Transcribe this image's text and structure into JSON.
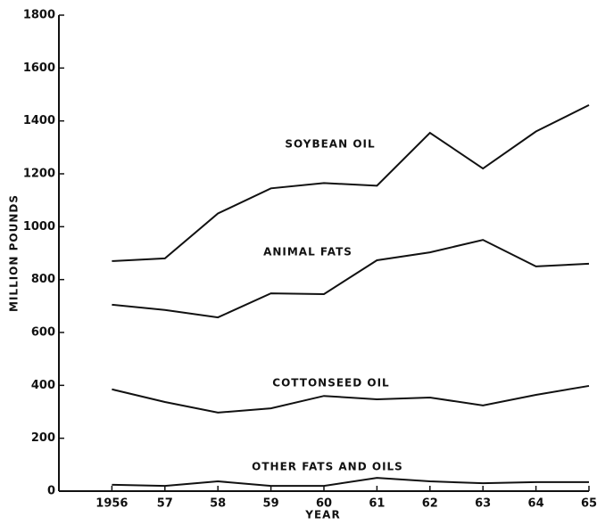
{
  "chart_data": {
    "type": "line",
    "xlabel": "YEAR",
    "ylabel": "MILLION POUNDS",
    "x": [
      1956,
      1957,
      1958,
      1959,
      1960,
      1961,
      1962,
      1963,
      1964,
      1965
    ],
    "xlim": [
      1955,
      1965
    ],
    "xticks": [
      1956,
      {
        "value": 1957,
        "label": "57"
      },
      {
        "value": 1958,
        "label": "58"
      },
      {
        "value": 1959,
        "label": "59"
      },
      {
        "value": 1960,
        "label": "60"
      },
      {
        "value": 1961,
        "label": "61"
      },
      {
        "value": 1962,
        "label": "62"
      },
      {
        "value": 1963,
        "label": "63"
      },
      {
        "value": 1964,
        "label": "64"
      },
      {
        "value": 1965,
        "label": "65"
      }
    ],
    "ylim": [
      0,
      1800
    ],
    "yticks": [
      0,
      200,
      400,
      600,
      800,
      1000,
      1200,
      1400,
      1600,
      1800
    ],
    "series": [
      {
        "name": "SOYBEAN OIL",
        "color": "#111111",
        "values": [
          870,
          880,
          1050,
          1145,
          1165,
          1155,
          1355,
          1220,
          1360,
          1460
        ]
      },
      {
        "name": "ANIMAL FATS",
        "color": "#111111",
        "values": [
          705,
          685,
          657,
          748,
          745,
          873,
          903,
          950,
          850,
          860
        ]
      },
      {
        "name": "COTTONSEED OIL",
        "color": "#111111",
        "values": [
          385,
          337,
          297,
          313,
          360,
          347,
          354,
          324,
          364,
          398
        ]
      },
      {
        "name": "OTHER FATS AND OILS",
        "color": "#111111",
        "values": [
          24,
          20,
          37,
          20,
          20,
          50,
          37,
          30,
          34,
          34
        ]
      }
    ]
  }
}
